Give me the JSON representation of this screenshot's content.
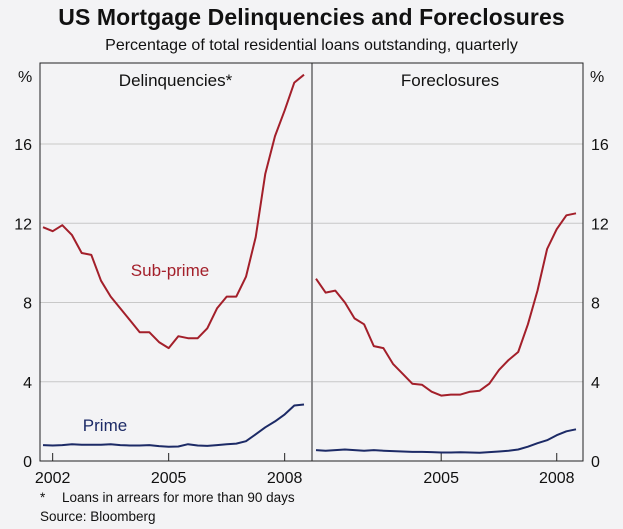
{
  "title": "US Mortgage Delinquencies and Foreclosures",
  "subtitle": "Percentage of total residential loans outstanding, quarterly",
  "footnote": {
    "marker": "*",
    "text": "Loans in arrears for more than 90 days"
  },
  "source": "Source: Bloomberg",
  "colors": {
    "subprime": "#a31f2a",
    "prime": "#1c2a66",
    "grid": "#c8c8c8",
    "background": "#f3f3f5"
  },
  "chart_data": [
    {
      "type": "line",
      "panel_title": "Delinquencies*",
      "ylabel_left": "%",
      "ylim": [
        0,
        20
      ],
      "yticks": [
        0,
        4,
        8,
        12,
        16
      ],
      "xticks": [
        "2002",
        "2005",
        "2008"
      ],
      "xtick_values": [
        2002,
        2005,
        2008
      ],
      "xlim": [
        2001.75,
        2008.5
      ],
      "grid": true,
      "series": [
        {
          "name": "Sub-prime",
          "x": [
            2001.75,
            2002.0,
            2002.25,
            2002.5,
            2002.75,
            2003.0,
            2003.25,
            2003.5,
            2003.75,
            2004.0,
            2004.25,
            2004.5,
            2004.75,
            2005.0,
            2005.25,
            2005.5,
            2005.75,
            2006.0,
            2006.25,
            2006.5,
            2006.75,
            2007.0,
            2007.25,
            2007.5,
            2007.75,
            2008.0,
            2008.25,
            2008.5
          ],
          "values": [
            11.8,
            11.6,
            11.9,
            11.4,
            10.5,
            10.4,
            9.1,
            8.3,
            7.7,
            7.1,
            6.5,
            6.5,
            6.0,
            5.7,
            6.3,
            6.2,
            6.2,
            6.7,
            7.7,
            8.3,
            8.3,
            9.3,
            11.3,
            14.5,
            16.4,
            17.7,
            19.1,
            19.5
          ]
        },
        {
          "name": "Prime",
          "x": [
            2001.75,
            2002.0,
            2002.25,
            2002.5,
            2002.75,
            2003.0,
            2003.25,
            2003.5,
            2003.75,
            2004.0,
            2004.25,
            2004.5,
            2004.75,
            2005.0,
            2005.25,
            2005.5,
            2005.75,
            2006.0,
            2006.25,
            2006.5,
            2006.75,
            2007.0,
            2007.25,
            2007.5,
            2007.75,
            2008.0,
            2008.25,
            2008.5
          ],
          "values": [
            0.8,
            0.78,
            0.8,
            0.85,
            0.82,
            0.82,
            0.82,
            0.85,
            0.8,
            0.78,
            0.78,
            0.8,
            0.75,
            0.72,
            0.73,
            0.85,
            0.78,
            0.76,
            0.8,
            0.85,
            0.88,
            1.0,
            1.35,
            1.7,
            2.0,
            2.35,
            2.8,
            2.85
          ]
        }
      ]
    },
    {
      "type": "line",
      "panel_title": "Foreclosures",
      "ylabel_right": "%",
      "ylim": [
        0,
        20
      ],
      "yticks": [
        0,
        4,
        8,
        12,
        16
      ],
      "xticks": [
        "2005",
        "2008"
      ],
      "xtick_values": [
        2005,
        2008
      ],
      "xlim": [
        2001.75,
        2008.5
      ],
      "grid": true,
      "series": [
        {
          "name": "Sub-prime",
          "x": [
            2001.75,
            2002.0,
            2002.25,
            2002.5,
            2002.75,
            2003.0,
            2003.25,
            2003.5,
            2003.75,
            2004.0,
            2004.25,
            2004.5,
            2004.75,
            2005.0,
            2005.25,
            2005.5,
            2005.75,
            2006.0,
            2006.25,
            2006.5,
            2006.75,
            2007.0,
            2007.25,
            2007.5,
            2007.75,
            2008.0,
            2008.25,
            2008.5
          ],
          "values": [
            9.2,
            8.5,
            8.6,
            8.0,
            7.2,
            6.9,
            5.8,
            5.7,
            4.9,
            4.4,
            3.9,
            3.85,
            3.5,
            3.3,
            3.35,
            3.35,
            3.5,
            3.55,
            3.9,
            4.6,
            5.1,
            5.5,
            6.9,
            8.6,
            10.7,
            11.7,
            12.4,
            12.5
          ]
        },
        {
          "name": "Prime",
          "x": [
            2001.75,
            2002.0,
            2002.25,
            2002.5,
            2002.75,
            2003.0,
            2003.25,
            2003.5,
            2003.75,
            2004.0,
            2004.25,
            2004.5,
            2004.75,
            2005.0,
            2005.25,
            2005.5,
            2005.75,
            2006.0,
            2006.25,
            2006.5,
            2006.75,
            2007.0,
            2007.25,
            2007.5,
            2007.75,
            2008.0,
            2008.25,
            2008.5
          ],
          "values": [
            0.55,
            0.52,
            0.55,
            0.58,
            0.55,
            0.52,
            0.55,
            0.52,
            0.5,
            0.48,
            0.46,
            0.46,
            0.45,
            0.43,
            0.43,
            0.44,
            0.43,
            0.42,
            0.45,
            0.48,
            0.52,
            0.58,
            0.72,
            0.9,
            1.05,
            1.3,
            1.5,
            1.6
          ]
        }
      ]
    }
  ]
}
